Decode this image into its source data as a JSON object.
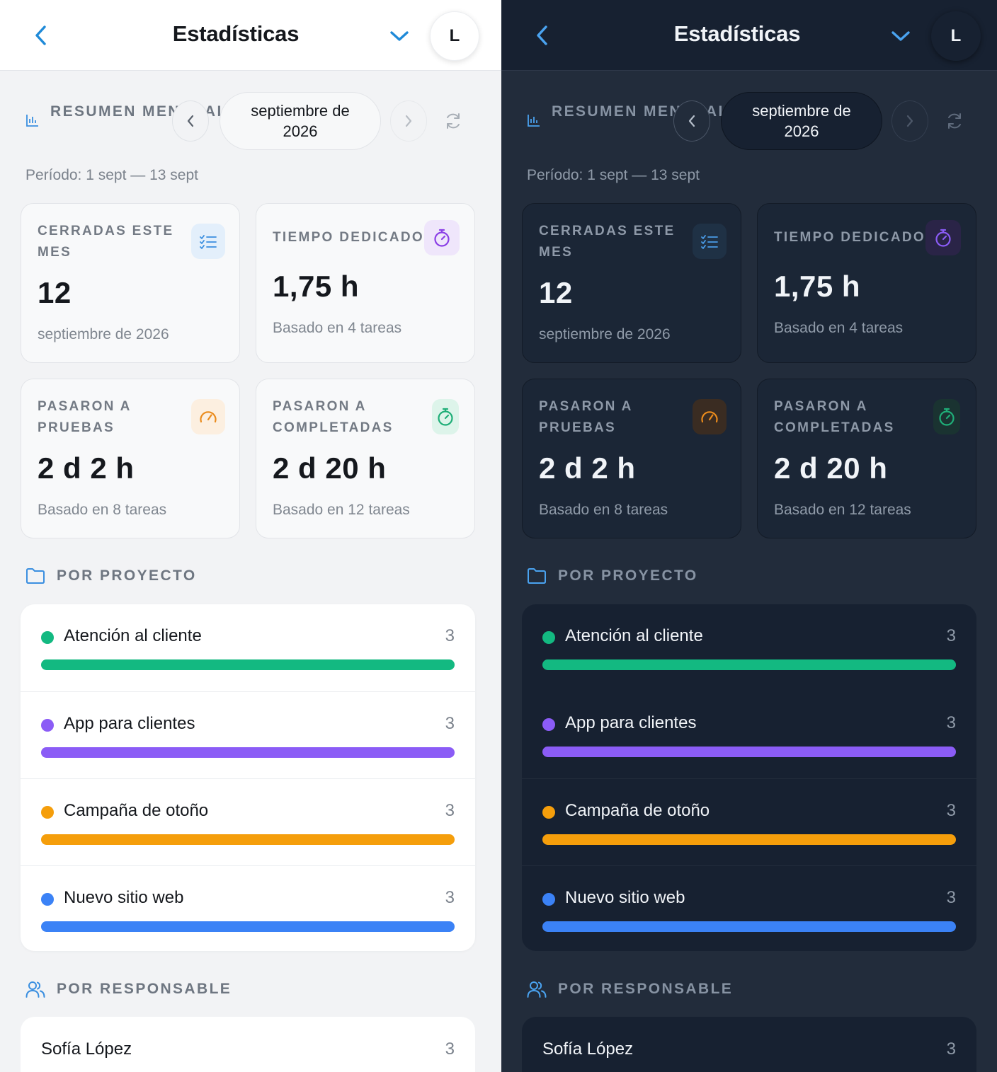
{
  "header": {
    "title": "Estadísticas",
    "avatar_initial": "L"
  },
  "summary": {
    "label": "RESUMEN MENSUAL",
    "month": "septiembre de 2026",
    "period": "Período: 1 sept — 13 sept"
  },
  "cards": [
    {
      "label": "CERRADAS ESTE MES",
      "value": "12",
      "sub": "septiembre de 2026",
      "icon": "list-check-icon",
      "color": "#3b8fe0"
    },
    {
      "label": "TIEMPO DEDICADO",
      "value": "1,75 h",
      "sub": "Basado en 4 tareas",
      "icon": "stopwatch-icon",
      "color": "#8b3fe6"
    },
    {
      "label": "PASARON A PRUEBAS",
      "value": "2 d 2 h",
      "sub": "Basado en 8 tareas",
      "icon": "gauge-icon",
      "color": "#ea8b1c"
    },
    {
      "label": "PASARON A COMPLETADAS",
      "value": "2 d 20 h",
      "sub": "Basado en 12 tareas",
      "icon": "stopwatch-icon",
      "color": "#1fae78"
    }
  ],
  "projects_section": {
    "title": "POR PROYECTO"
  },
  "projects": [
    {
      "name": "Atención al cliente",
      "count": "3",
      "color": "#13b981",
      "fill": 1.0
    },
    {
      "name": "App para clientes",
      "count": "3",
      "color": "#8b5cf6",
      "fill": 1.0
    },
    {
      "name": "Campaña de otoño",
      "count": "3",
      "color": "#f59e0b",
      "fill": 1.0
    },
    {
      "name": "Nuevo sitio web",
      "count": "3",
      "color": "#3b82f6",
      "fill": 1.0
    }
  ],
  "responsables_section": {
    "title": "POR RESPONSABLE"
  },
  "responsables": [
    {
      "name": "Sofía López",
      "count": "3"
    }
  ],
  "theme": {
    "accent": "#1f8ad8",
    "accent_dark": "#4aa3f0"
  }
}
